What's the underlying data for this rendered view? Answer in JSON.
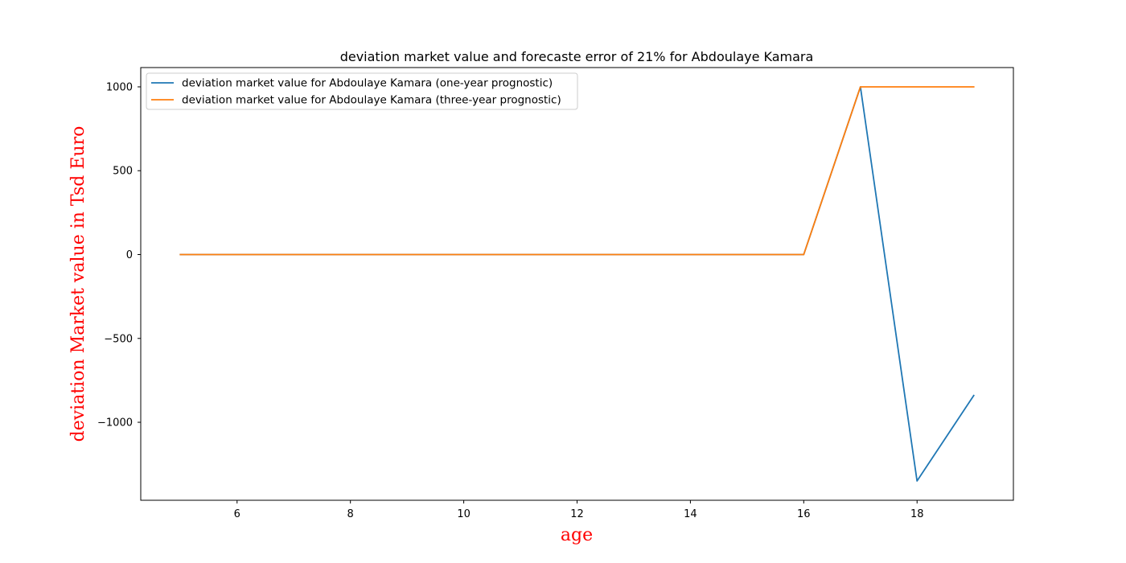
{
  "chart_data": {
    "type": "line",
    "title": "deviation market value and forecaste error of 21% for Abdoulaye Kamara",
    "xlabel": "age",
    "ylabel": "deviation Market value in Tsd Euro",
    "label_color": "#ff0000",
    "xlim": [
      4.3,
      19.7
    ],
    "ylim": [
      -1465,
      1115
    ],
    "xticks": [
      6,
      8,
      10,
      12,
      14,
      16,
      18
    ],
    "yticks": [
      -1000,
      -500,
      0,
      500,
      1000
    ],
    "ytick_labels": [
      "−1000",
      "−500",
      "0",
      "500",
      "1000"
    ],
    "grid": false,
    "legend_position": "top-left",
    "x": [
      5,
      6,
      7,
      8,
      9,
      10,
      11,
      12,
      13,
      14,
      15,
      16,
      17,
      18,
      19
    ],
    "series": [
      {
        "name": "deviation market value for Abdoulaye Kamara (one-year prognostic)",
        "color": "#1f77b4",
        "values": [
          0,
          0,
          0,
          0,
          0,
          0,
          0,
          0,
          0,
          0,
          0,
          0,
          1000,
          -1350,
          -840
        ]
      },
      {
        "name": "deviation market value for Abdoulaye Kamara (three-year prognostic)",
        "color": "#ff7f0e",
        "values": [
          0,
          0,
          0,
          0,
          0,
          0,
          0,
          0,
          0,
          0,
          0,
          0,
          1000,
          1000,
          1000
        ]
      }
    ]
  }
}
